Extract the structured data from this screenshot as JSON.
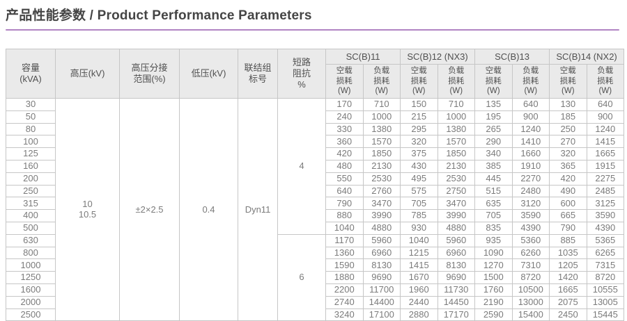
{
  "page": {
    "title": "产品性能参数 / Product Performance Parameters",
    "colors": {
      "accent_underline": "#b184c3",
      "header_bg": "#eaeaea",
      "border": "#c6c6c6",
      "data_text": "#7b7b7b"
    }
  },
  "table": {
    "headers": {
      "capacity": "容量\n(kVA)",
      "hv": "高压(kV)",
      "tap_range": "高压分接\n范围(%)",
      "lv": "低压(kV)",
      "vector_group": "联结组\n标号",
      "impedance": "短路\n阻抗\n%",
      "no_load_loss": "空载\n损耗\n(W)",
      "load_loss": "负载\n损耗\n(W)"
    },
    "groups": [
      "SC(B)11",
      "SC(B)12 (NX3)",
      "SC(B)13",
      "SC(B)14 (NX2)"
    ],
    "shared": {
      "hv_value": "10\n10.5",
      "tap_value": "±2×2.5",
      "lv_value": "0.4",
      "vector_value": "Dyn11"
    },
    "impedance": [
      {
        "value": "4",
        "span": 11
      },
      {
        "value": "6",
        "span": 7
      }
    ],
    "rows": [
      {
        "kva": "30",
        "v": [
          "170",
          "710",
          "150",
          "710",
          "135",
          "640",
          "130",
          "640"
        ]
      },
      {
        "kva": "50",
        "v": [
          "240",
          "1000",
          "215",
          "1000",
          "195",
          "900",
          "185",
          "900"
        ]
      },
      {
        "kva": "80",
        "v": [
          "330",
          "1380",
          "295",
          "1380",
          "265",
          "1240",
          "250",
          "1240"
        ]
      },
      {
        "kva": "100",
        "v": [
          "360",
          "1570",
          "320",
          "1570",
          "290",
          "1410",
          "270",
          "1415"
        ]
      },
      {
        "kva": "125",
        "v": [
          "420",
          "1850",
          "375",
          "1850",
          "340",
          "1660",
          "320",
          "1665"
        ]
      },
      {
        "kva": "160",
        "v": [
          "480",
          "2130",
          "430",
          "2130",
          "385",
          "1910",
          "365",
          "1915"
        ]
      },
      {
        "kva": "200",
        "v": [
          "550",
          "2530",
          "495",
          "2530",
          "445",
          "2270",
          "420",
          "2275"
        ]
      },
      {
        "kva": "250",
        "v": [
          "640",
          "2760",
          "575",
          "2750",
          "515",
          "2480",
          "490",
          "2485"
        ]
      },
      {
        "kva": "315",
        "v": [
          "790",
          "3470",
          "705",
          "3470",
          "635",
          "3120",
          "600",
          "3125"
        ]
      },
      {
        "kva": "400",
        "v": [
          "880",
          "3990",
          "785",
          "3990",
          "705",
          "3590",
          "665",
          "3590"
        ]
      },
      {
        "kva": "500",
        "v": [
          "1040",
          "4880",
          "930",
          "4880",
          "835",
          "4390",
          "790",
          "4390"
        ]
      },
      {
        "kva": "630",
        "v": [
          "1170",
          "5960",
          "1040",
          "5960",
          "935",
          "5360",
          "885",
          "5365"
        ]
      },
      {
        "kva": "800",
        "v": [
          "1360",
          "6960",
          "1215",
          "6960",
          "1090",
          "6260",
          "1035",
          "6265"
        ]
      },
      {
        "kva": "1000",
        "v": [
          "1590",
          "8130",
          "1415",
          "8130",
          "1270",
          "7310",
          "1205",
          "7315"
        ]
      },
      {
        "kva": "1250",
        "v": [
          "1880",
          "9690",
          "1670",
          "9690",
          "1500",
          "8720",
          "1420",
          "8720"
        ]
      },
      {
        "kva": "1600",
        "v": [
          "2200",
          "11700",
          "1960",
          "11730",
          "1760",
          "10500",
          "1665",
          "10555"
        ]
      },
      {
        "kva": "2000",
        "v": [
          "2740",
          "14400",
          "2440",
          "14450",
          "2190",
          "13000",
          "2075",
          "13005"
        ]
      },
      {
        "kva": "2500",
        "v": [
          "3240",
          "17100",
          "2880",
          "17170",
          "2590",
          "15400",
          "2450",
          "15445"
        ]
      }
    ]
  }
}
